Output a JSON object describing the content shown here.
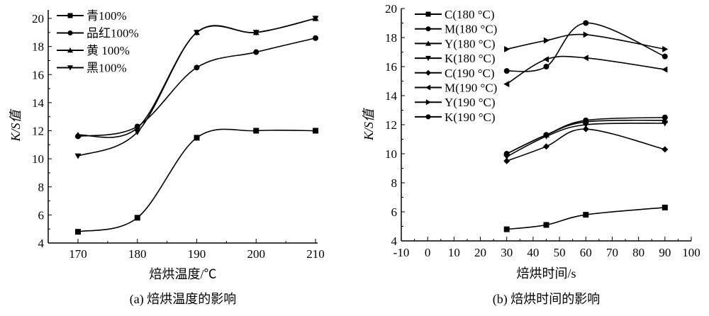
{
  "chart_data": [
    {
      "type": "line",
      "title": "",
      "caption": "(a) 焙烘温度的影响",
      "xlabel": "焙烘温度/℃",
      "ylabel": "K/S值",
      "xlim": [
        165,
        210
      ],
      "ylim": [
        4,
        20
      ],
      "xticks": [
        170,
        180,
        190,
        200,
        210
      ],
      "yticks": [
        4,
        6,
        8,
        10,
        12,
        14,
        16,
        18,
        20
      ],
      "legend": "top-left",
      "x": [
        170,
        180,
        190,
        200,
        210
      ],
      "series": [
        {
          "name": "青100%",
          "marker": "square",
          "values": [
            4.8,
            5.8,
            11.5,
            12,
            12
          ]
        },
        {
          "name": "品红100%",
          "marker": "circle",
          "values": [
            11.6,
            12.3,
            16.5,
            17.6,
            18.6
          ]
        },
        {
          "name": "黄 100%",
          "marker": "triangle-up",
          "values": [
            11.7,
            12.2,
            19,
            19,
            20
          ]
        },
        {
          "name": "黑100%",
          "marker": "triangle-down",
          "values": [
            10.2,
            11.9,
            19,
            19,
            20
          ]
        }
      ]
    },
    {
      "type": "line",
      "title": "",
      "caption": "(b) 焙烘时间的影响",
      "xlabel": "焙烘时间/s",
      "ylabel": "K/S值",
      "xlim": [
        -10,
        100
      ],
      "ylim": [
        4,
        20
      ],
      "xticks": [
        -10,
        0,
        10,
        20,
        30,
        40,
        50,
        60,
        70,
        80,
        90,
        100
      ],
      "yticks": [
        4,
        6,
        8,
        10,
        12,
        14,
        16,
        18,
        20
      ],
      "legend": "top-left",
      "x": [
        30,
        45,
        60,
        90
      ],
      "series": [
        {
          "name": "C(180 °C)",
          "marker": "square",
          "values": [
            4.8,
            5.1,
            5.8,
            6.3
          ]
        },
        {
          "name": "M(180 °C)",
          "marker": "circle",
          "values": [
            15.7,
            16.0,
            19.0,
            16.7
          ]
        },
        {
          "name": "Y(180 °C)",
          "marker": "triangle-up",
          "values": [
            10.0,
            11.3,
            12.2,
            12.3
          ]
        },
        {
          "name": "K(180 °C)",
          "marker": "triangle-down",
          "values": [
            9.8,
            11.2,
            12.0,
            12.1
          ]
        },
        {
          "name": "C(190 °C)",
          "marker": "diamond",
          "values": [
            9.5,
            10.5,
            11.7,
            10.3
          ]
        },
        {
          "name": "M(190 °C)",
          "marker": "triangle-left",
          "values": [
            14.8,
            16.5,
            16.6,
            15.8
          ]
        },
        {
          "name": "Y(190 °C)",
          "marker": "triangle-right",
          "values": [
            17.2,
            17.8,
            18.2,
            17.2
          ]
        },
        {
          "name": "K(190 °C)",
          "marker": "circle",
          "values": [
            10.0,
            11.3,
            12.3,
            12.5
          ]
        }
      ]
    }
  ]
}
